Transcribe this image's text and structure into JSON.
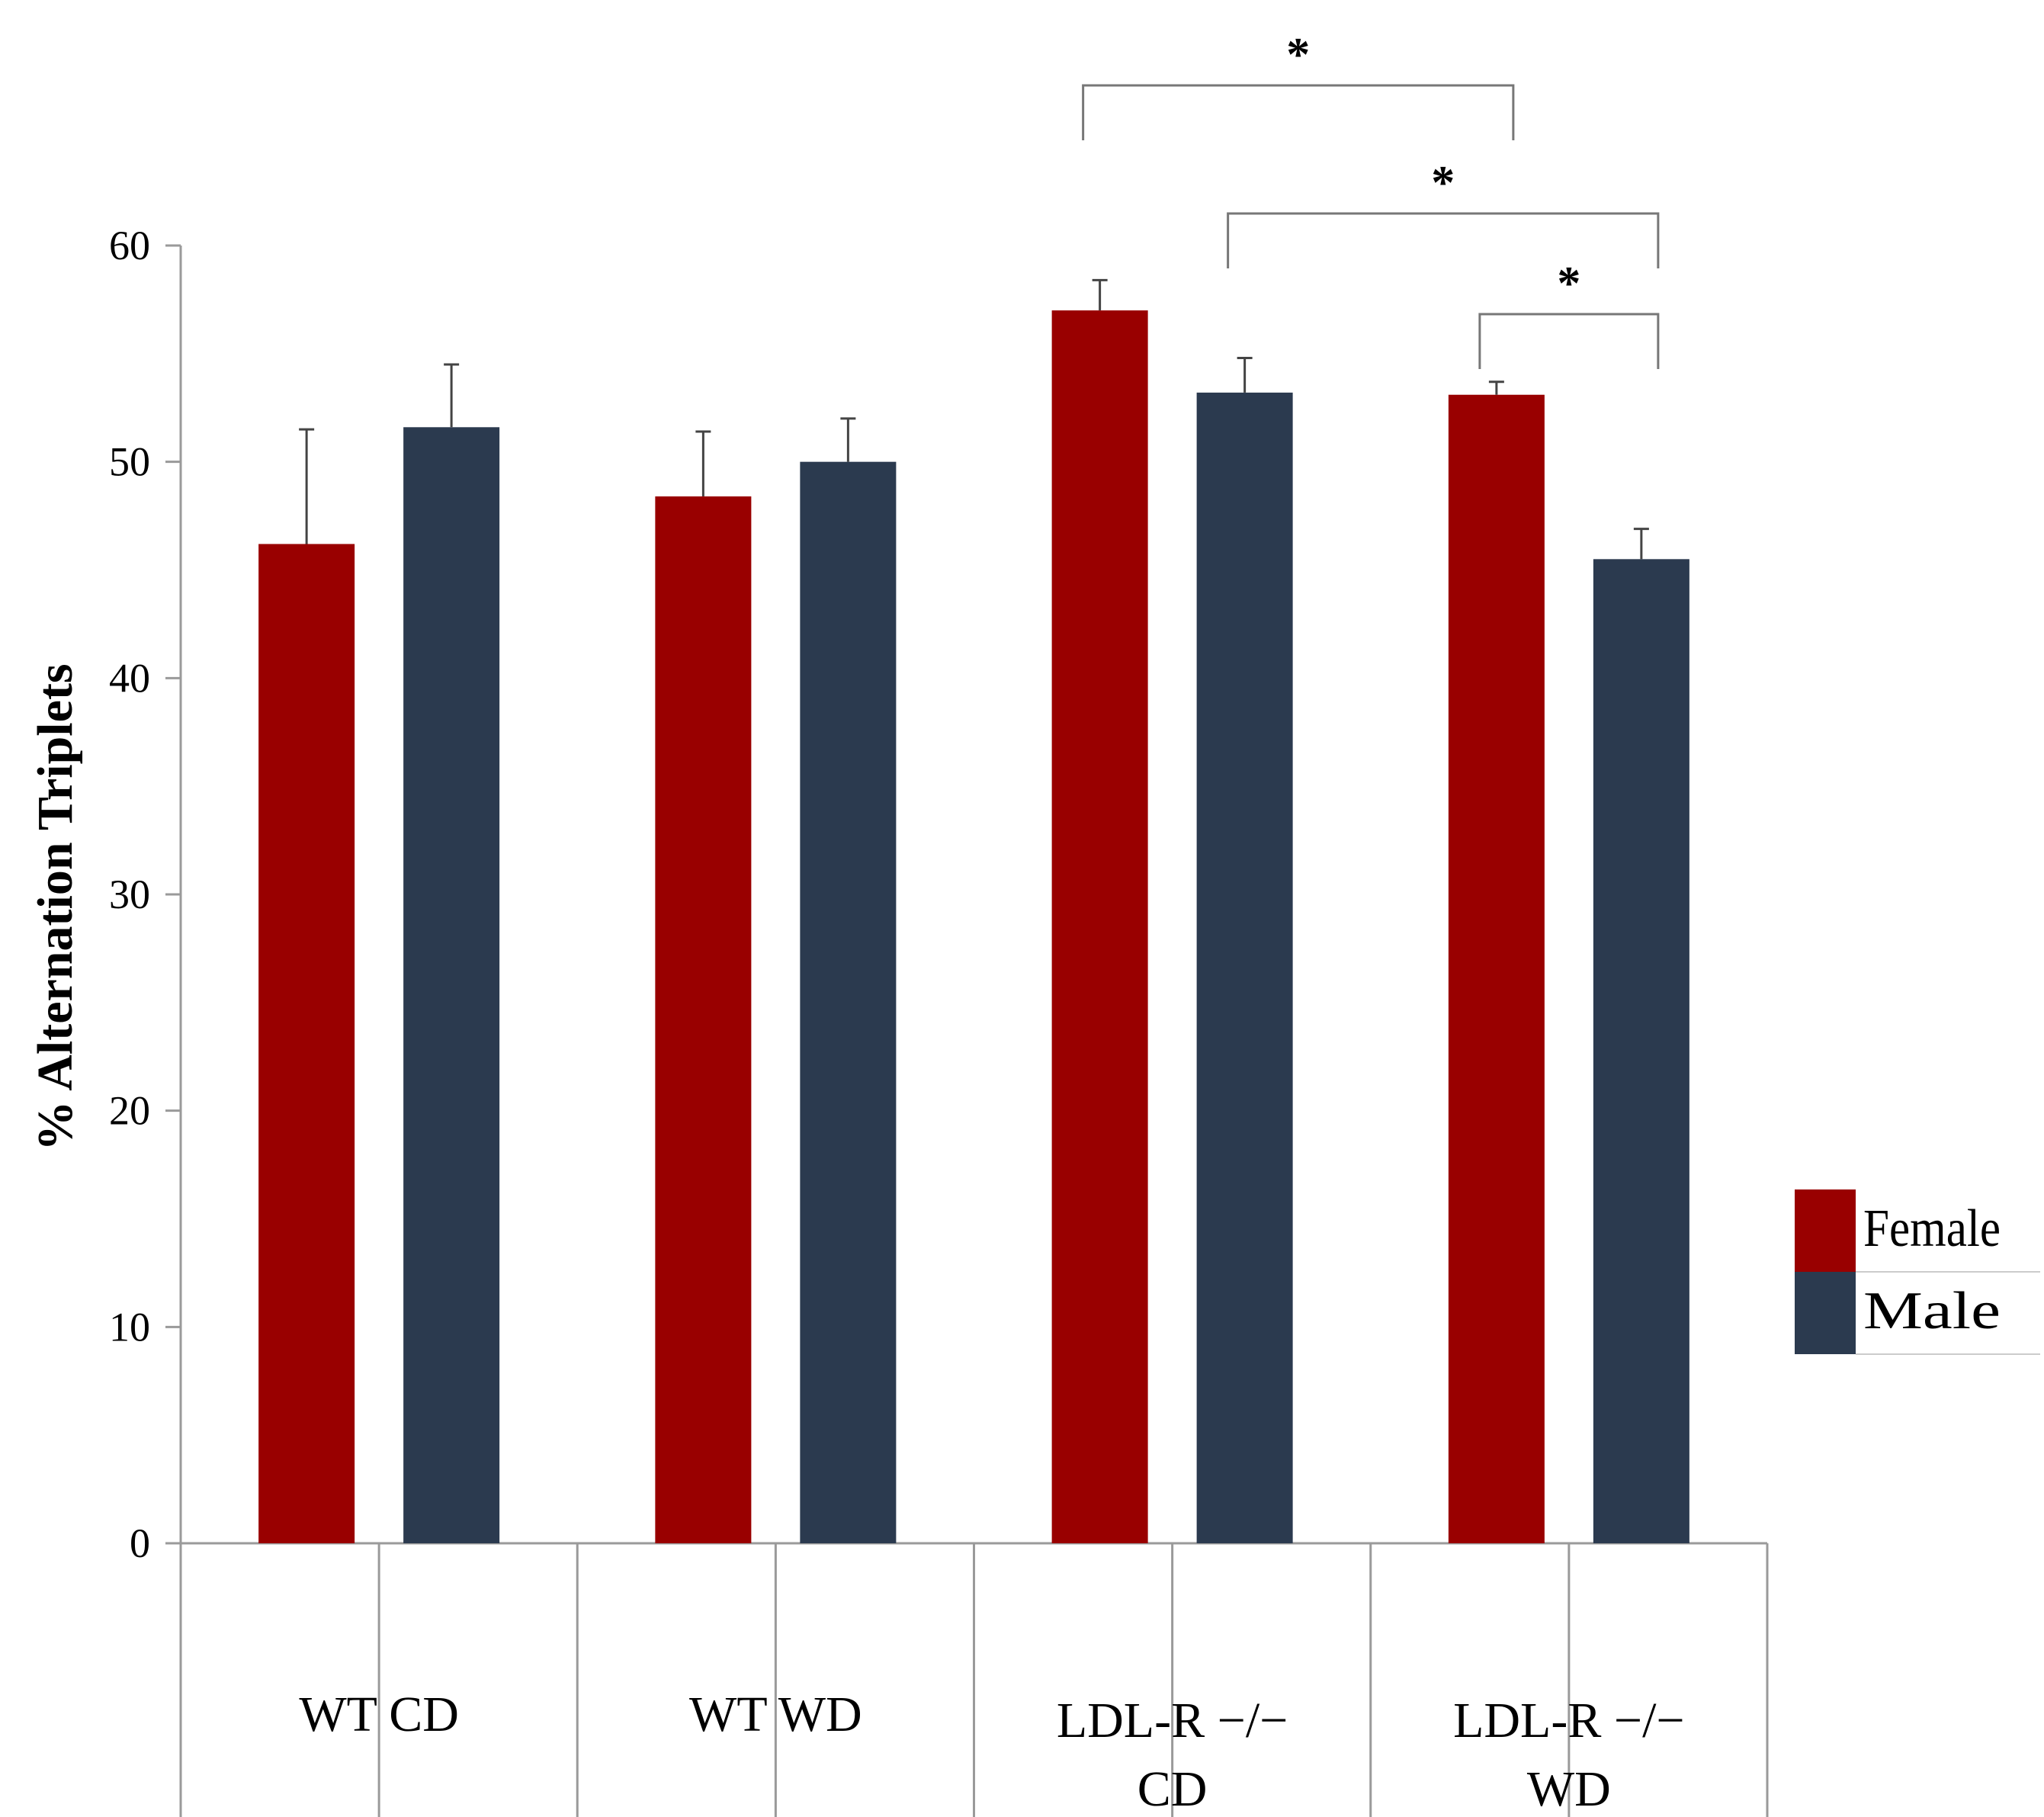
{
  "chart_data": {
    "type": "bar",
    "title": "",
    "xlabel": "",
    "ylabel": "% Alternation Triplets",
    "ylim": [
      0,
      60
    ],
    "yticks": [
      "0",
      "10",
      "20",
      "30",
      "40",
      "50",
      "60"
    ],
    "categories": [
      {
        "lines": [
          "WT CD"
        ]
      },
      {
        "lines": [
          "WT WD"
        ]
      },
      {
        "lines": [
          "LDL-R −/−",
          "CD"
        ]
      },
      {
        "lines": [
          "LDL-R −/−",
          "WD"
        ]
      }
    ],
    "series": [
      {
        "name": "Female",
        "color": "#990000",
        "values": [
          46.2,
          48.4,
          57.0,
          53.1
        ],
        "errors": [
          5.3,
          3.0,
          1.4,
          0.6
        ]
      },
      {
        "name": "Male",
        "color": "#2b3a4f",
        "values": [
          51.6,
          50.0,
          53.2,
          45.5
        ],
        "errors": [
          2.9,
          2.0,
          1.6,
          1.4
        ]
      }
    ],
    "significance": [
      {
        "from": [
          2,
          0
        ],
        "to": [
          3,
          0
        ],
        "label": "*"
      },
      {
        "from": [
          2,
          1
        ],
        "to": [
          3,
          1
        ],
        "label": "*"
      },
      {
        "from": [
          3,
          0
        ],
        "to": [
          3,
          1
        ],
        "label": "*"
      }
    ],
    "legend": {
      "position": "right",
      "entries": [
        "Female",
        "Male"
      ]
    },
    "grid": false
  }
}
